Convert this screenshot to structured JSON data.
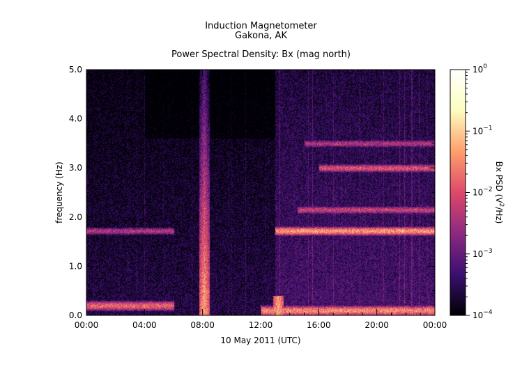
{
  "titles": {
    "line1": "Induction Magnetometer",
    "line2": "Gakona, AK",
    "line3": "Power Spectral Density: Bx (mag north)"
  },
  "chart_data": {
    "type": "heatmap",
    "title": "Power Spectral Density: Bx (mag north)",
    "xlabel": "10 May 2011 (UTC)",
    "ylabel": "frequency (Hz)",
    "x_ticks": [
      "00:00",
      "04:00",
      "08:00",
      "12:00",
      "16:00",
      "20:00",
      "00:00"
    ],
    "x_range_hours": [
      0,
      24
    ],
    "y_ticks": [
      "0.0",
      "1.0",
      "2.0",
      "3.0",
      "4.0",
      "5.0"
    ],
    "ylim": [
      0,
      5
    ],
    "colorbar": {
      "label": "Bx PSD (V²/Hz)",
      "scale": "log",
      "range": [
        0.0001,
        1
      ],
      "ticks": [
        {
          "value": 0.0001,
          "base": "10",
          "exp": "−4"
        },
        {
          "value": 0.001,
          "base": "10",
          "exp": "−3"
        },
        {
          "value": 0.01,
          "base": "10",
          "exp": "−2"
        },
        {
          "value": 0.1,
          "base": "10",
          "exp": "−1"
        },
        {
          "value": 1,
          "base": "10",
          "exp": "0"
        }
      ],
      "colors": [
        "#000004",
        "#3b0f70",
        "#8c2981",
        "#de4968",
        "#fe9f6d",
        "#fcfdbf",
        "#ffffff"
      ]
    },
    "features": [
      {
        "name": "band",
        "freq_hz": 1.72,
        "start_h": 0.0,
        "end_h": 6.0,
        "log_psd": -2.4
      },
      {
        "name": "band",
        "freq_hz": 1.72,
        "start_h": 13.0,
        "end_h": 24.0,
        "log_psd": -1.4
      },
      {
        "name": "band",
        "freq_hz": 2.15,
        "start_h": 14.5,
        "end_h": 24.0,
        "log_psd": -2.2
      },
      {
        "name": "band",
        "freq_hz": 3.0,
        "start_h": 16.0,
        "end_h": 24.0,
        "log_psd": -2.0
      },
      {
        "name": "band",
        "freq_hz": 3.5,
        "start_h": 15.0,
        "end_h": 24.0,
        "log_psd": -2.4
      },
      {
        "name": "low-freq",
        "freq_hz": 0.2,
        "start_h": 0.0,
        "end_h": 6.0,
        "log_psd": -1.8
      },
      {
        "name": "low-freq",
        "freq_hz": 0.1,
        "start_h": 12.0,
        "end_h": 24.0,
        "log_psd": -1.5
      },
      {
        "name": "burst",
        "time_h": 8.1,
        "max_freq_hz": 5.0,
        "log_psd": -1.2
      },
      {
        "name": "burst",
        "time_h": 13.2,
        "max_freq_hz": 0.4,
        "log_psd": -1.2
      }
    ]
  }
}
